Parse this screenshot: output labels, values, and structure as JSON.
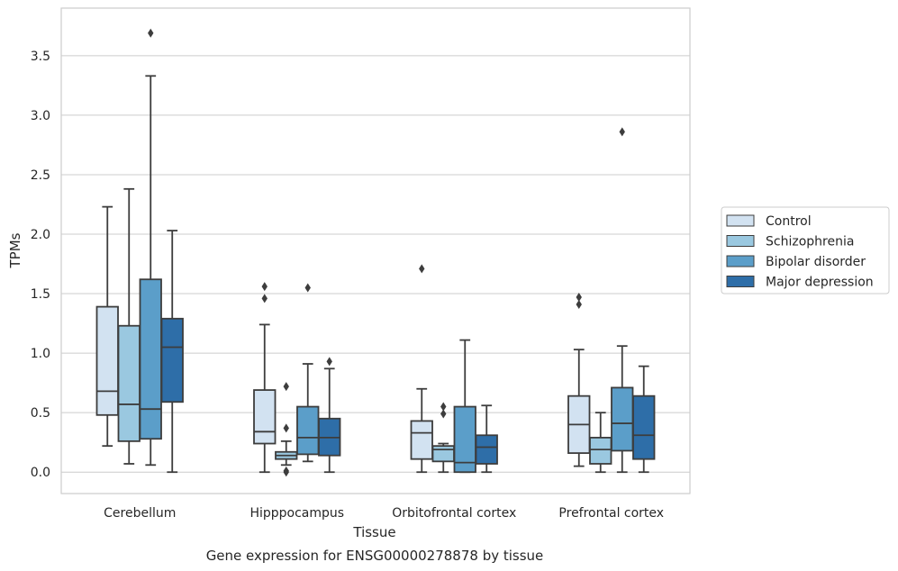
{
  "chart_data": {
    "type": "box",
    "caption": "Gene expression for ENSG00000278878 by tissue",
    "xlabel": "Tissue",
    "ylabel": "TPMs",
    "ylim": [
      -0.18,
      3.9
    ],
    "yticks": [
      0.0,
      0.5,
      1.0,
      1.5,
      2.0,
      2.5,
      3.0,
      3.5
    ],
    "ytick_labels": [
      "0.0",
      "0.5",
      "1.0",
      "1.5",
      "2.0",
      "2.5",
      "3.0",
      "3.5"
    ],
    "grid": "horizontal",
    "legend_position": "right",
    "categories": [
      "Cerebellum",
      "Hipppocampus",
      "Orbitofrontal cortex",
      "Prefrontal cortex"
    ],
    "series": [
      {
        "name": "Control",
        "color": "#d2e2f1",
        "boxes": [
          {
            "whislo": 0.22,
            "q1": 0.48,
            "med": 0.68,
            "q3": 1.39,
            "whishi": 2.23,
            "fliers": []
          },
          {
            "whislo": 0.0,
            "q1": 0.24,
            "med": 0.34,
            "q3": 0.69,
            "whishi": 1.24,
            "fliers": [
              1.46,
              1.56
            ]
          },
          {
            "whislo": 0.0,
            "q1": 0.11,
            "med": 0.33,
            "q3": 0.43,
            "whishi": 0.7,
            "fliers": [
              1.71
            ]
          },
          {
            "whislo": 0.05,
            "q1": 0.16,
            "med": 0.4,
            "q3": 0.64,
            "whishi": 1.03,
            "fliers": [
              1.41,
              1.47
            ]
          }
        ]
      },
      {
        "name": "Schizophrenia",
        "color": "#9ac8e0",
        "boxes": [
          {
            "whislo": 0.07,
            "q1": 0.26,
            "med": 0.57,
            "q3": 1.23,
            "whishi": 2.38,
            "fliers": []
          },
          {
            "whislo": 0.06,
            "q1": 0.11,
            "med": 0.14,
            "q3": 0.17,
            "whishi": 0.26,
            "fliers": [
              0.0,
              0.01,
              0.37,
              0.72
            ]
          },
          {
            "whislo": 0.0,
            "q1": 0.09,
            "med": 0.19,
            "q3": 0.22,
            "whishi": 0.24,
            "fliers": [
              0.49,
              0.55
            ]
          },
          {
            "whislo": 0.0,
            "q1": 0.07,
            "med": 0.19,
            "q3": 0.29,
            "whishi": 0.5,
            "fliers": []
          }
        ]
      },
      {
        "name": "Bipolar disorder",
        "color": "#5b9ec9",
        "boxes": [
          {
            "whislo": 0.06,
            "q1": 0.28,
            "med": 0.53,
            "q3": 1.62,
            "whishi": 3.33,
            "fliers": [
              3.69
            ]
          },
          {
            "whislo": 0.09,
            "q1": 0.15,
            "med": 0.29,
            "q3": 0.55,
            "whishi": 0.91,
            "fliers": [
              1.55
            ]
          },
          {
            "whislo": 0.0,
            "q1": 0.0,
            "med": 0.08,
            "q3": 0.55,
            "whishi": 1.11,
            "fliers": []
          },
          {
            "whislo": 0.0,
            "q1": 0.18,
            "med": 0.41,
            "q3": 0.71,
            "whishi": 1.06,
            "fliers": [
              2.86
            ]
          }
        ]
      },
      {
        "name": "Major depression",
        "color": "#2e6ea8",
        "boxes": [
          {
            "whislo": 0.0,
            "q1": 0.59,
            "med": 1.05,
            "q3": 1.29,
            "whishi": 2.03,
            "fliers": []
          },
          {
            "whislo": 0.0,
            "q1": 0.14,
            "med": 0.29,
            "q3": 0.45,
            "whishi": 0.87,
            "fliers": [
              0.93
            ]
          },
          {
            "whislo": 0.0,
            "q1": 0.07,
            "med": 0.21,
            "q3": 0.31,
            "whishi": 0.56,
            "fliers": []
          },
          {
            "whislo": 0.0,
            "q1": 0.11,
            "med": 0.31,
            "q3": 0.64,
            "whishi": 0.89,
            "fliers": []
          }
        ]
      }
    ]
  }
}
